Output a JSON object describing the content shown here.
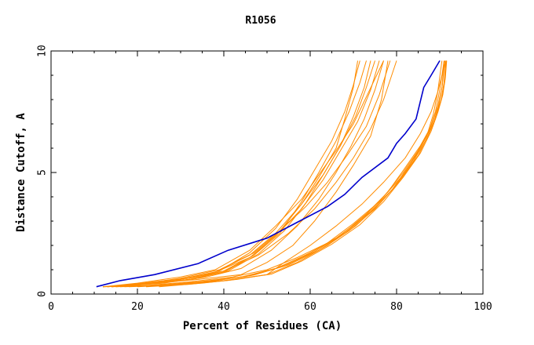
{
  "chart_data": {
    "type": "line",
    "title": "R1056",
    "xlabel": "Percent of Residues (CA)",
    "ylabel": "Distance Cutoff, A",
    "xlim": [
      0,
      100
    ],
    "ylim": [
      0,
      10
    ],
    "xticks": [
      0,
      20,
      40,
      60,
      80,
      100
    ],
    "yticks": [
      0,
      5,
      10
    ],
    "grid": false,
    "colors": {
      "highlight": "#0000cc",
      "others": "#ff8c00"
    },
    "series": [
      {
        "highlight": true,
        "x": [
          10.5,
          16,
          24,
          34,
          41,
          50,
          57,
          64,
          68,
          72,
          78,
          80,
          82,
          84.5,
          86.3,
          88,
          90
        ],
        "y": [
          0.3,
          0.55,
          0.8,
          1.25,
          1.8,
          2.3,
          2.95,
          3.6,
          4.1,
          4.8,
          5.6,
          6.2,
          6.6,
          7.2,
          8.5,
          9.0,
          9.6
        ]
      },
      {
        "x": [
          12,
          20,
          30,
          38,
          46,
          52,
          58,
          62,
          66,
          68,
          70,
          71
        ],
        "y": [
          0.3,
          0.4,
          0.6,
          0.9,
          1.6,
          2.5,
          3.7,
          4.8,
          6.0,
          7.2,
          8.5,
          9.6
        ]
      },
      {
        "x": [
          13,
          22,
          32,
          40,
          47,
          53,
          58,
          62,
          66,
          69,
          71.5,
          73
        ],
        "y": [
          0.3,
          0.4,
          0.6,
          0.9,
          1.6,
          2.5,
          3.8,
          5.0,
          6.3,
          7.5,
          8.7,
          9.6
        ]
      },
      {
        "x": [
          12.5,
          21,
          31,
          39,
          46,
          52,
          57,
          61,
          65,
          68,
          70,
          71.5
        ],
        "y": [
          0.3,
          0.45,
          0.65,
          0.95,
          1.7,
          2.7,
          3.9,
          5.1,
          6.3,
          7.5,
          8.6,
          9.6
        ]
      },
      {
        "x": [
          13,
          22,
          32,
          40,
          47,
          53,
          58,
          63,
          67,
          70,
          72.5,
          74
        ],
        "y": [
          0.3,
          0.4,
          0.6,
          0.95,
          1.6,
          2.6,
          3.7,
          4.9,
          6.1,
          7.3,
          8.5,
          9.6
        ]
      },
      {
        "x": [
          12,
          20,
          30,
          38,
          46,
          52,
          58,
          63,
          67,
          71,
          74,
          76
        ],
        "y": [
          0.3,
          0.4,
          0.6,
          0.9,
          1.5,
          2.4,
          3.5,
          4.7,
          5.9,
          7.1,
          8.4,
          9.6
        ]
      },
      {
        "x": [
          14,
          23,
          33,
          41,
          48,
          54,
          59,
          63,
          67,
          70.5,
          73,
          75
        ],
        "y": [
          0.3,
          0.42,
          0.62,
          0.95,
          1.65,
          2.6,
          3.75,
          4.9,
          6.1,
          7.3,
          8.5,
          9.6
        ]
      },
      {
        "x": [
          12,
          20,
          30,
          38,
          46,
          52,
          58,
          62,
          66,
          70,
          73.5,
          77
        ],
        "y": [
          0.3,
          0.45,
          0.7,
          1.0,
          1.8,
          2.8,
          3.9,
          4.9,
          5.9,
          7.0,
          8.3,
          9.6
        ]
      },
      {
        "x": [
          13,
          21,
          30,
          39,
          47,
          53,
          59,
          64,
          68.5,
          73,
          76,
          78.5
        ],
        "y": [
          0.3,
          0.42,
          0.65,
          1.0,
          1.7,
          2.6,
          3.6,
          4.6,
          5.7,
          6.9,
          8.2,
          9.6
        ]
      },
      {
        "x": [
          12,
          22,
          32,
          40,
          48,
          55,
          61,
          66,
          70,
          74,
          77,
          80
        ],
        "y": [
          0.3,
          0.42,
          0.65,
          0.95,
          1.6,
          2.5,
          3.5,
          4.6,
          5.6,
          6.8,
          8.0,
          9.6
        ]
      },
      {
        "x": [
          14,
          24,
          34,
          44,
          50,
          56,
          61,
          66,
          70,
          74,
          76.5,
          78
        ],
        "y": [
          0.3,
          0.45,
          0.6,
          0.8,
          1.3,
          2.0,
          3.0,
          4.2,
          5.3,
          6.5,
          8.0,
          9.6
        ]
      },
      {
        "x": [
          15,
          26,
          36,
          44,
          51,
          57,
          62,
          66,
          69.5,
          72.5,
          75,
          77
        ],
        "y": [
          0.3,
          0.45,
          0.7,
          1.05,
          1.8,
          2.8,
          3.9,
          5.0,
          6.1,
          7.2,
          8.4,
          9.6
        ]
      },
      {
        "x": [
          14,
          22,
          32,
          42,
          50,
          57,
          64,
          70,
          76,
          81,
          84.5,
          87,
          88.5,
          89.5,
          90.5
        ],
        "y": [
          0.3,
          0.35,
          0.5,
          0.7,
          1.0,
          1.5,
          2.1,
          2.9,
          3.8,
          4.8,
          5.7,
          6.5,
          7.4,
          8.3,
          9.6
        ]
      },
      {
        "x": [
          15,
          24,
          34,
          44,
          52,
          59,
          66,
          72,
          77,
          81.5,
          85,
          87.5,
          89,
          90,
          91
        ],
        "y": [
          0.3,
          0.35,
          0.5,
          0.7,
          1.05,
          1.6,
          2.3,
          3.1,
          4.0,
          5.0,
          5.9,
          6.7,
          7.5,
          8.4,
          9.6
        ]
      },
      {
        "x": [
          16,
          25,
          35,
          45,
          53,
          60,
          67,
          73,
          78,
          82,
          85.5,
          88,
          89.5,
          90.5,
          91
        ],
        "y": [
          0.3,
          0.36,
          0.5,
          0.72,
          1.1,
          1.7,
          2.4,
          3.3,
          4.2,
          5.2,
          6.1,
          6.9,
          7.7,
          8.5,
          9.6
        ]
      },
      {
        "x": [
          17,
          26,
          36,
          46,
          54,
          61,
          68,
          74,
          79,
          83,
          86,
          88.5,
          89.8,
          90.6,
          91.2
        ],
        "y": [
          0.3,
          0.36,
          0.52,
          0.75,
          1.15,
          1.75,
          2.5,
          3.4,
          4.3,
          5.3,
          6.2,
          7.0,
          7.8,
          8.6,
          9.6
        ]
      },
      {
        "x": [
          18,
          27,
          37,
          47,
          55,
          62,
          69,
          75,
          80,
          84,
          87,
          89,
          90.3,
          91,
          91.4
        ],
        "y": [
          0.3,
          0.36,
          0.52,
          0.78,
          1.2,
          1.8,
          2.6,
          3.5,
          4.5,
          5.5,
          6.4,
          7.2,
          8.0,
          8.7,
          9.6
        ]
      },
      {
        "x": [
          20,
          30,
          40,
          50,
          57,
          64,
          70.5,
          76,
          81,
          85,
          87.5,
          89.3,
          90.5,
          91.2,
          91.5
        ],
        "y": [
          0.3,
          0.4,
          0.55,
          0.8,
          1.3,
          2.0,
          2.8,
          3.7,
          4.7,
          5.7,
          6.6,
          7.4,
          8.1,
          8.8,
          9.6
        ]
      },
      {
        "x": [
          22,
          32,
          41,
          51,
          58,
          65,
          71.5,
          77,
          81.5,
          85.5,
          88,
          89.6,
          90.7,
          91.3,
          91.6
        ],
        "y": [
          0.3,
          0.4,
          0.56,
          0.82,
          1.35,
          2.05,
          2.85,
          3.8,
          4.8,
          5.8,
          6.7,
          7.5,
          8.2,
          8.9,
          9.6
        ]
      },
      {
        "x": [
          25,
          35,
          43,
          50,
          54,
          60,
          66,
          72,
          77,
          82,
          85.5,
          88,
          89.5,
          90.5,
          91.5
        ],
        "y": [
          0.3,
          0.45,
          0.6,
          0.8,
          1.3,
          2.0,
          2.8,
          3.7,
          4.6,
          5.6,
          6.6,
          7.5,
          8.3,
          9.0,
          9.6
        ]
      }
    ]
  }
}
